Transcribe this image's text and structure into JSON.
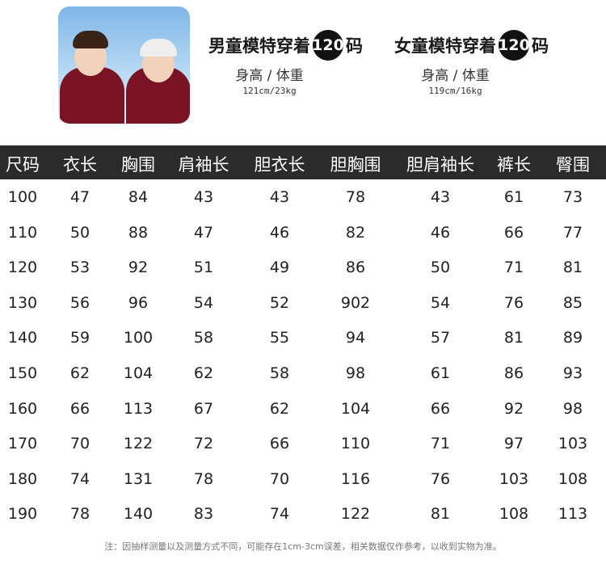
{
  "boy_model": {
    "title_prefix": "男童模特穿着",
    "size": "120",
    "title_suffix": "码",
    "subtitle": "身高 / 体重",
    "measure": "121cm/23kg"
  },
  "girl_model": {
    "title_prefix": "女童模特穿着",
    "size": "120",
    "title_suffix": "码",
    "subtitle": "身高 / 体重",
    "measure": "119cm/16kg"
  },
  "table": {
    "headers": [
      "尺码",
      "衣长",
      "胸围",
      "肩袖长",
      "胆衣长",
      "胆胸围",
      "胆肩袖长",
      "裤长",
      "臀围"
    ],
    "rows": [
      [
        "100",
        "47",
        "84",
        "43",
        "43",
        "78",
        "43",
        "61",
        "73"
      ],
      [
        "110",
        "50",
        "88",
        "47",
        "46",
        "82",
        "46",
        "66",
        "77"
      ],
      [
        "120",
        "53",
        "92",
        "51",
        "49",
        "86",
        "50",
        "71",
        "81"
      ],
      [
        "130",
        "56",
        "96",
        "54",
        "52",
        "902",
        "54",
        "76",
        "85"
      ],
      [
        "140",
        "59",
        "100",
        "58",
        "55",
        "94",
        "57",
        "81",
        "89"
      ],
      [
        "150",
        "62",
        "104",
        "62",
        "58",
        "98",
        "61",
        "86",
        "93"
      ],
      [
        "160",
        "66",
        "113",
        "67",
        "62",
        "104",
        "66",
        "92",
        "98"
      ],
      [
        "170",
        "70",
        "122",
        "72",
        "66",
        "110",
        "71",
        "97",
        "103"
      ],
      [
        "180",
        "74",
        "131",
        "78",
        "70",
        "116",
        "76",
        "103",
        "108"
      ],
      [
        "190",
        "78",
        "140",
        "83",
        "74",
        "122",
        "81",
        "108",
        "113"
      ]
    ]
  },
  "note": "注：因抽样测量以及测量方式不同，可能存在1cm-3cm误差，相关数据仅作参考，以收到实物为准。"
}
